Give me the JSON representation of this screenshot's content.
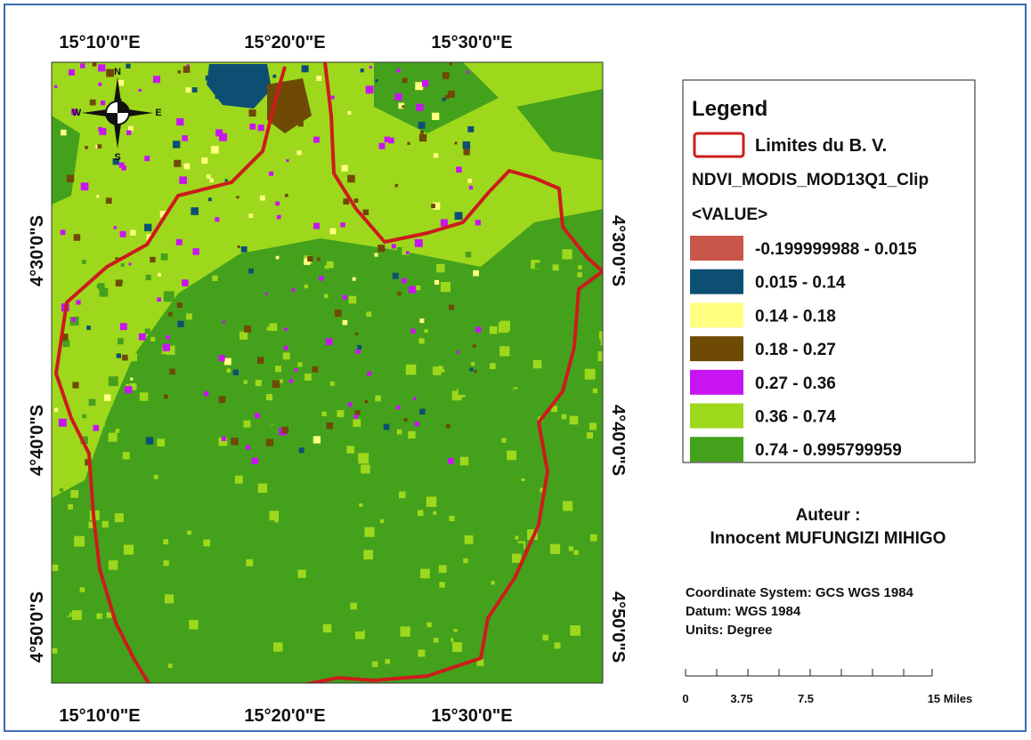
{
  "map": {
    "graticule": {
      "top": [
        "15°10'0\"E",
        "15°20'0\"E",
        "15°30'0\"E"
      ],
      "bottom": [
        "15°10'0\"E",
        "15°20'0\"E",
        "15°30'0\"E"
      ],
      "left": [
        "4°30'0\"S",
        "4°40'0\"S",
        "4°50'0\"S"
      ],
      "right": [
        "4°30'0\"S",
        "4°40'0\"S",
        "4°50'0\"S"
      ]
    }
  },
  "compass": {
    "labels": [
      "N",
      "E",
      "S",
      "W"
    ]
  },
  "legend": {
    "title": "Legend",
    "boundary": {
      "label": "Limites du B. V.",
      "color": "#cc1c1c"
    },
    "layer": "NDVI_MODIS_MOD13Q1_Clip",
    "field": "<VALUE>",
    "classes": [
      {
        "label": "-0.199999988 - 0.015",
        "color": "#c8574a"
      },
      {
        "label": "0.015 - 0.14",
        "color": "#0d4f73"
      },
      {
        "label": "0.14 - 0.18",
        "color": "#ffff80"
      },
      {
        "label": "0.18 - 0.27",
        "color": "#6e4a05"
      },
      {
        "label": "0.27 - 0.36",
        "color": "#c814f0"
      },
      {
        "label": "0.36 - 0.74",
        "color": "#9ed81c"
      },
      {
        "label": "0.74 - 0.995799959",
        "color": "#44a11c"
      }
    ]
  },
  "author": {
    "heading": "Auteur :",
    "name": "Innocent MUFUNGIZI MIHIGO"
  },
  "info": [
    "Coordinate System: GCS WGS 1984",
    "Datum: WGS 1984",
    "Units: Degree"
  ],
  "scale_bar": {
    "labels": [
      "0",
      "3.75",
      "7.5",
      "15 Miles"
    ]
  }
}
